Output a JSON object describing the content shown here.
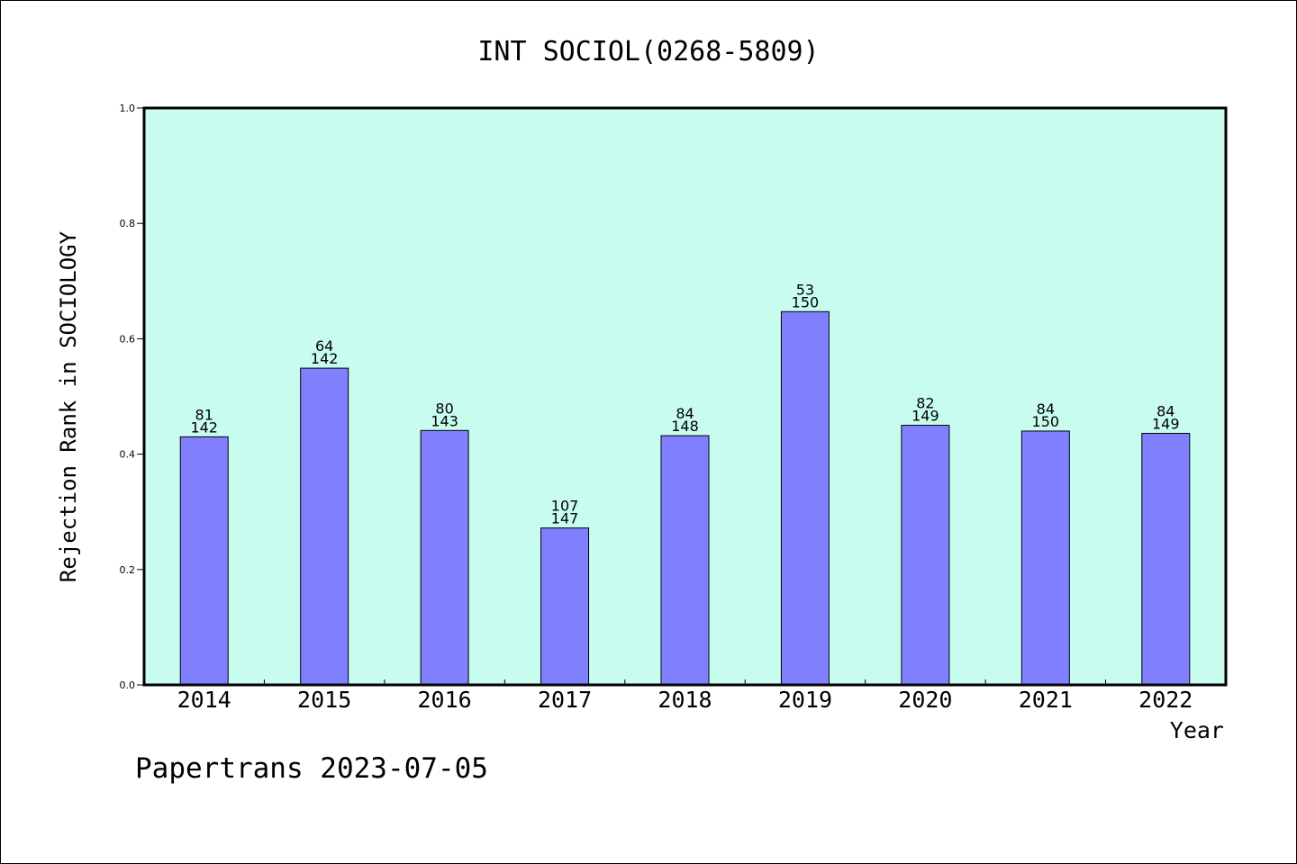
{
  "chart_data": {
    "type": "bar",
    "title": "INT SOCIOL(0268-5809)",
    "xlabel": "Year",
    "ylabel": "Rejection Rank in SOCIOLOGY",
    "ylim": [
      0,
      1.0
    ],
    "yticks": [
      "0.0",
      "0.2",
      "0.4",
      "0.6",
      "0.8",
      "1.0"
    ],
    "grid": false,
    "categories": [
      "2014",
      "2015",
      "2016",
      "2017",
      "2018",
      "2019",
      "2020",
      "2021",
      "2022"
    ],
    "values": [
      0.43,
      0.549,
      0.441,
      0.272,
      0.432,
      0.647,
      0.45,
      0.44,
      0.436
    ],
    "rank_labels": [
      "81",
      "64",
      "80",
      "107",
      "84",
      "53",
      "82",
      "84",
      "84"
    ],
    "total_labels": [
      "142",
      "142",
      "143",
      "147",
      "148",
      "150",
      "149",
      "150",
      "149"
    ],
    "colors": {
      "plot_bg": "#c8fcee",
      "bar": "#8080ff",
      "bar_edge": "#000000"
    }
  },
  "footer": "Papertrans 2023-07-05"
}
